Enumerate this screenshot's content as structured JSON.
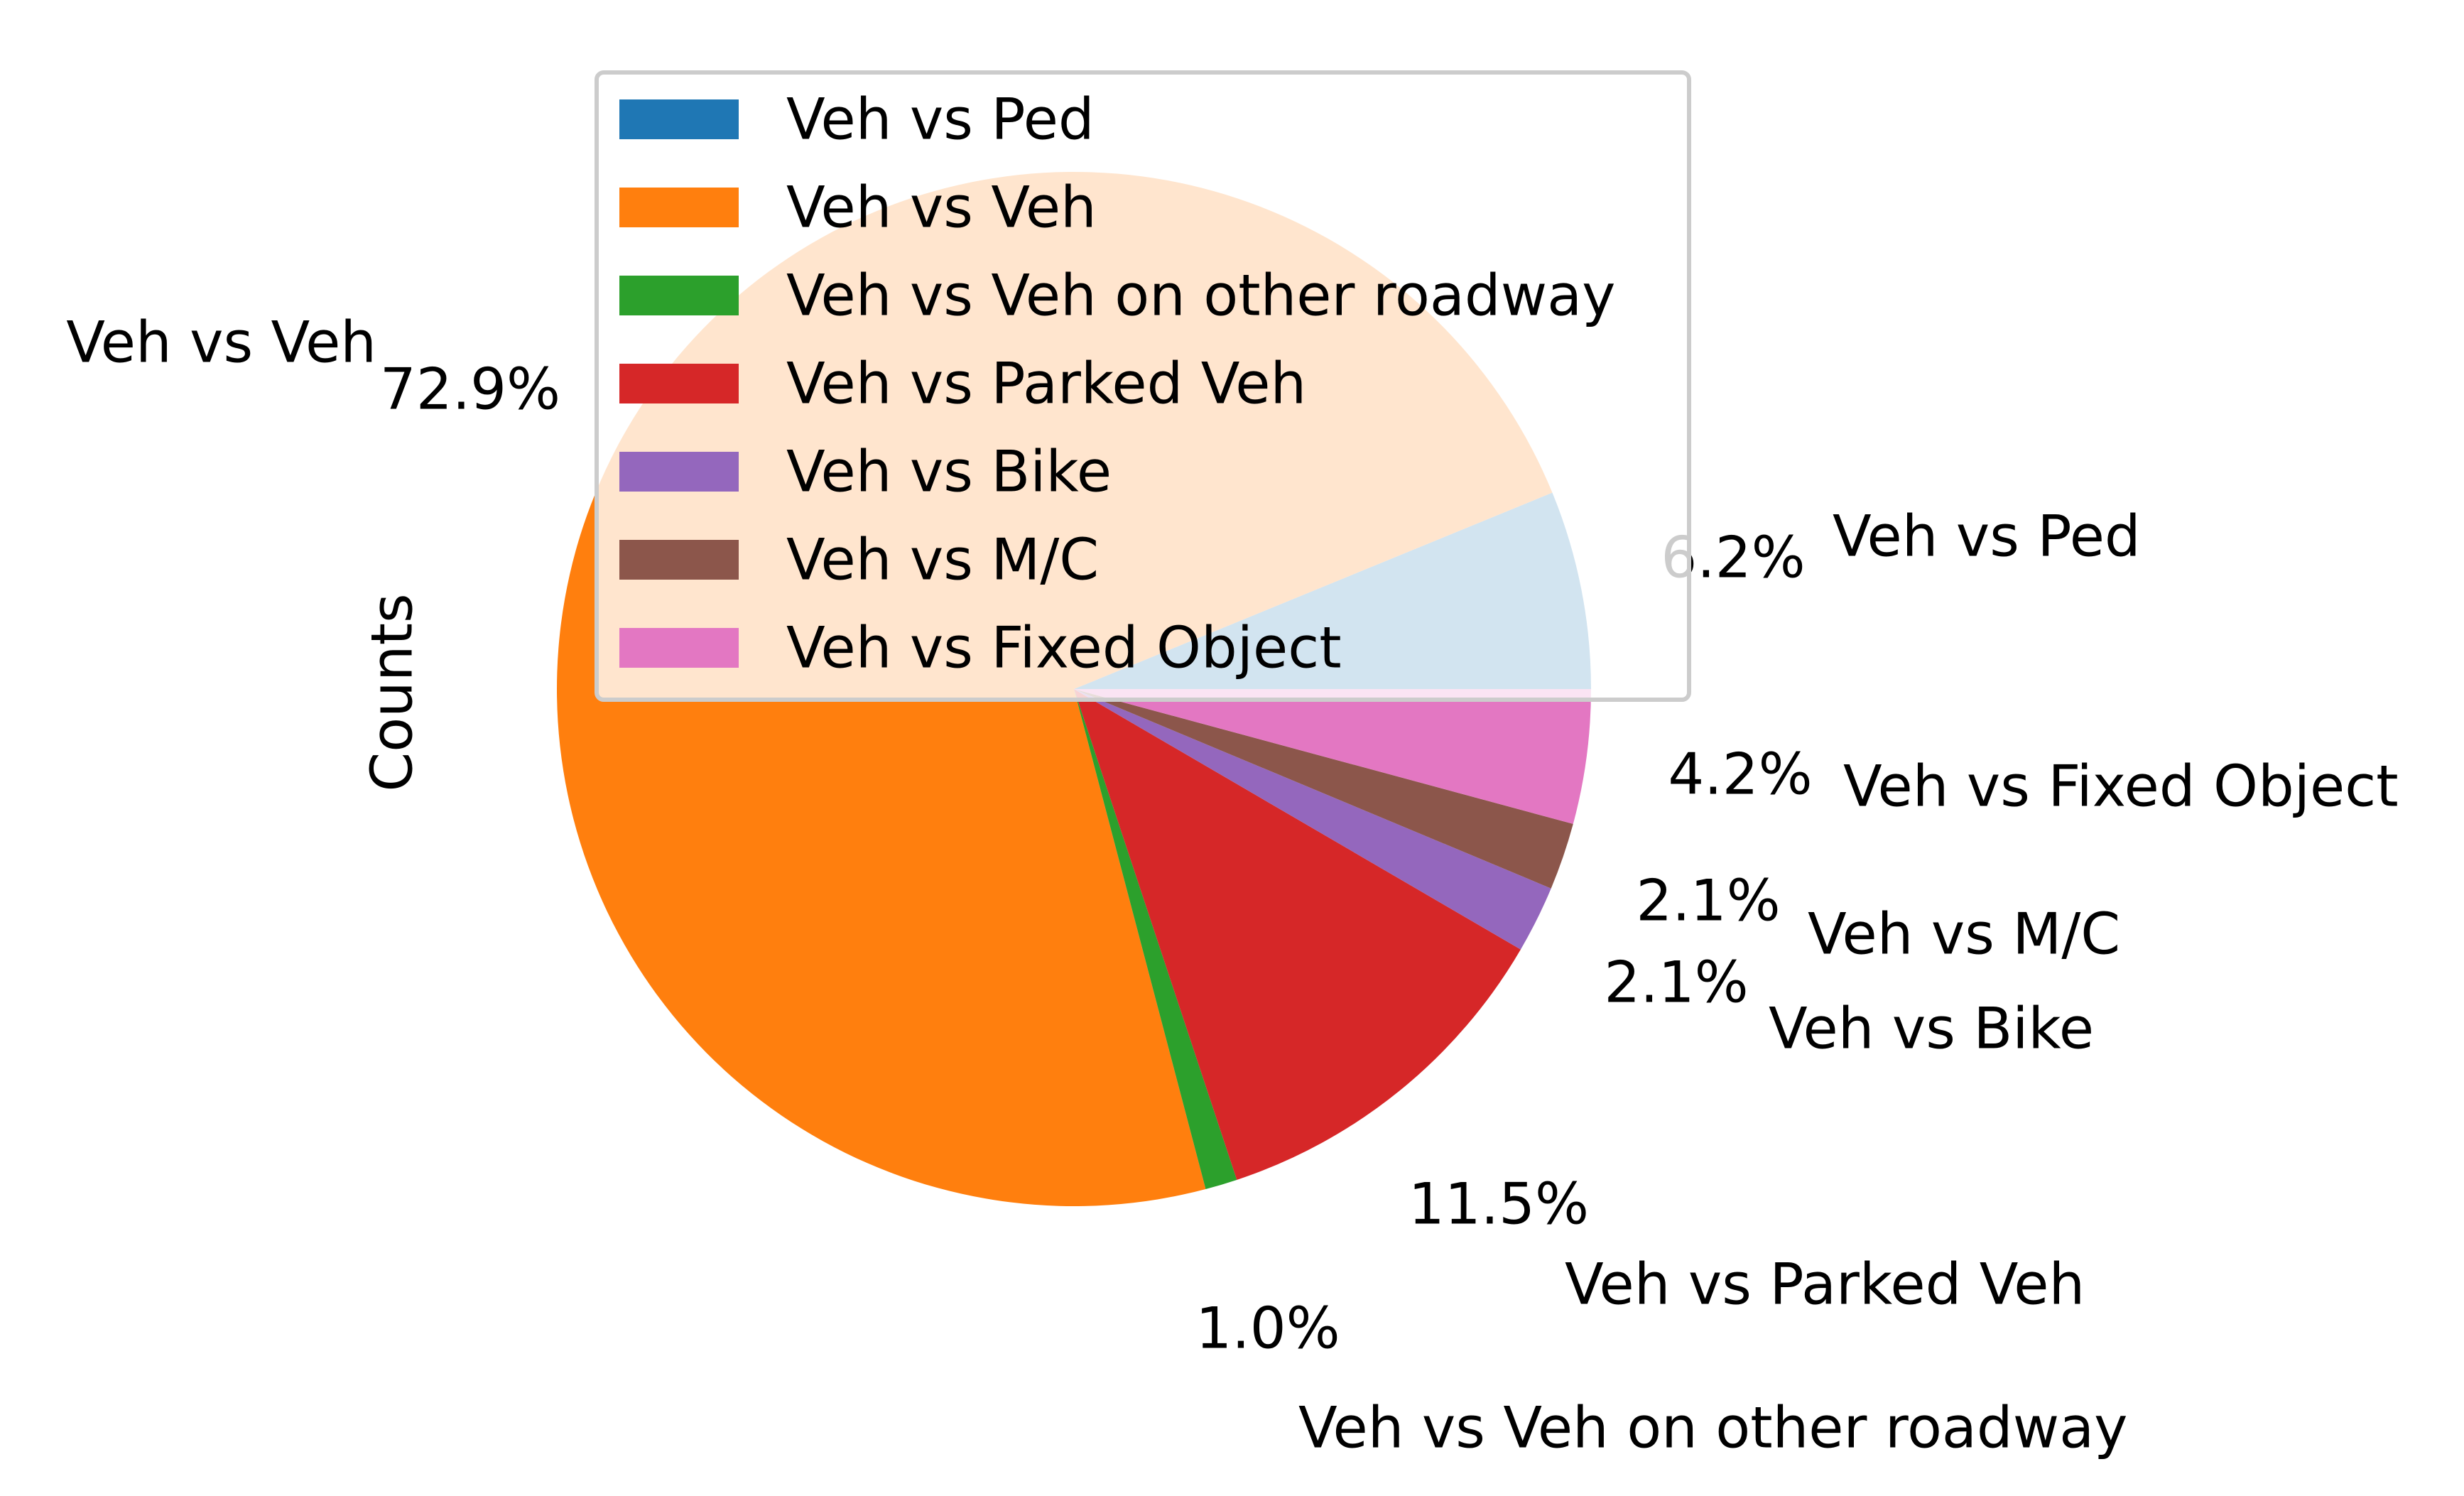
{
  "chart_data": {
    "type": "pie",
    "ylabel": "Counts",
    "categories": [
      "Veh vs Ped",
      "Veh vs Veh",
      "Veh vs Veh on other roadway",
      "Veh vs Parked Veh",
      "Veh vs Bike",
      "Veh vs M/C",
      "Veh vs Fixed Object"
    ],
    "values": [
      6.2,
      72.9,
      1.0,
      11.5,
      2.1,
      2.1,
      4.2
    ],
    "pct_labels": [
      "6.2%",
      "72.9%",
      "1.0%",
      "11.5%",
      "2.1%",
      "2.1%",
      "4.2%"
    ],
    "colors": [
      "#1f77b4",
      "#ff7f0e",
      "#2ca02c",
      "#d62728",
      "#9467bd",
      "#8c564b",
      "#e377c2"
    ],
    "start_angle_deg": 0,
    "direction": "counterclockwise",
    "legend_position": "top-center",
    "legend_alpha": 0.8
  }
}
